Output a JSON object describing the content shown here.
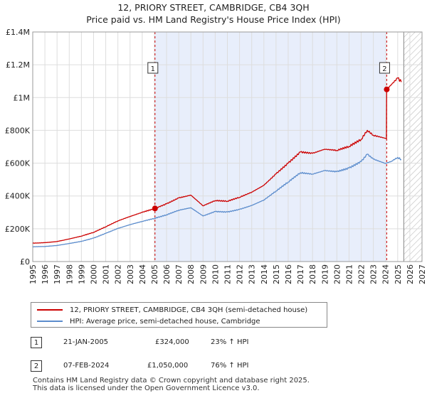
{
  "header": {
    "title": "12, PRIORY STREET, CAMBRIDGE, CB4 3QH",
    "subtitle": "Price paid vs. HM Land Registry's House Price Index (HPI)"
  },
  "chart_data": {
    "type": "line",
    "title": "12, PRIORY STREET, CAMBRIDGE, CB4 3QH",
    "subtitle": "Price paid vs. HM Land Registry's House Price Index (HPI)",
    "xlabel": "",
    "ylabel": "",
    "xlim": [
      1995,
      2027
    ],
    "ylim": [
      0,
      1400000
    ],
    "x_ticks": [
      "1995",
      "1996",
      "1997",
      "1998",
      "1999",
      "2000",
      "2001",
      "2002",
      "2003",
      "2004",
      "2005",
      "2006",
      "2007",
      "2008",
      "2009",
      "2010",
      "2011",
      "2012",
      "2013",
      "2014",
      "2015",
      "2016",
      "2017",
      "2018",
      "2019",
      "2020",
      "2021",
      "2022",
      "2023",
      "2024",
      "2025",
      "2026",
      "2027"
    ],
    "y_ticks": [
      {
        "value": 0,
        "label": "£0"
      },
      {
        "value": 200000,
        "label": "£200K"
      },
      {
        "value": 400000,
        "label": "£400K"
      },
      {
        "value": 600000,
        "label": "£600K"
      },
      {
        "value": 800000,
        "label": "£800K"
      },
      {
        "value": 1000000,
        "label": "£1M"
      },
      {
        "value": 1200000,
        "label": "£1.2M"
      },
      {
        "value": 1400000,
        "label": "£1.4M"
      }
    ],
    "grid": true,
    "shaded_period": [
      2005.05,
      2024.1
    ],
    "forecast_hatch_start": 2025.5,
    "series": [
      {
        "name": "12, PRIORY STREET, CAMBRIDGE, CB4 3QH (semi-detached house)",
        "color": "#cc0000",
        "x": [
          1995,
          1996,
          1997,
          1998,
          1999,
          2000,
          2001,
          2002,
          2003,
          2004,
          2005.05,
          2006,
          2007,
          2008,
          2009,
          2010,
          2011,
          2012,
          2013,
          2014,
          2015,
          2016,
          2017,
          2018,
          2019,
          2020,
          2021,
          2022,
          2022.5,
          2023,
          2024.08,
          2024.1,
          2024.5,
          2025,
          2025.3
        ],
        "y": [
          112000,
          115000,
          122000,
          138000,
          155000,
          178000,
          212000,
          248000,
          275000,
          300000,
          324000,
          352000,
          388000,
          405000,
          340000,
          372000,
          368000,
          392000,
          423000,
          465000,
          535000,
          600000,
          668000,
          660000,
          685000,
          678000,
          702000,
          745000,
          800000,
          770000,
          750000,
          1050000,
          1080000,
          1120000,
          1095000
        ]
      },
      {
        "name": "HPI: Average price, semi-detached house, Cambridge",
        "color": "#5b8ccc",
        "x": [
          1995,
          1996,
          1997,
          1998,
          1999,
          2000,
          2001,
          2002,
          2003,
          2004,
          2005,
          2006,
          2007,
          2008,
          2009,
          2010,
          2011,
          2012,
          2013,
          2014,
          2015,
          2016,
          2017,
          2018,
          2019,
          2020,
          2021,
          2022,
          2022.5,
          2023,
          2024,
          2024.5,
          2025,
          2025.3
        ],
        "y": [
          90000,
          92000,
          98000,
          110000,
          123000,
          143000,
          172000,
          202000,
          225000,
          245000,
          263000,
          285000,
          313000,
          328000,
          278000,
          305000,
          302000,
          318000,
          342000,
          375000,
          430000,
          485000,
          542000,
          533000,
          555000,
          548000,
          570000,
          610000,
          655000,
          625000,
          598000,
          612000,
          635000,
          622000
        ]
      }
    ],
    "sale_markers": [
      {
        "id": "1",
        "x": 2005.05,
        "y": 324000
      },
      {
        "id": "2",
        "x": 2024.1,
        "y": 1050000
      }
    ]
  },
  "legend": {
    "items": [
      {
        "label": "12, PRIORY STREET, CAMBRIDGE, CB4 3QH (semi-detached house)",
        "color": "#cc0000"
      },
      {
        "label": "HPI: Average price, semi-detached house, Cambridge",
        "color": "#5b8ccc"
      }
    ]
  },
  "sales": [
    {
      "id": "1",
      "date": "21-JAN-2005",
      "price": "£324,000",
      "hpi": "23% ↑ HPI"
    },
    {
      "id": "2",
      "date": "07-FEB-2024",
      "price": "£1,050,000",
      "hpi": "76% ↑ HPI"
    }
  ],
  "footer": {
    "line1": "Contains HM Land Registry data © Crown copyright and database right 2025.",
    "line2": "This data is licensed under the Open Government Licence v3.0."
  }
}
